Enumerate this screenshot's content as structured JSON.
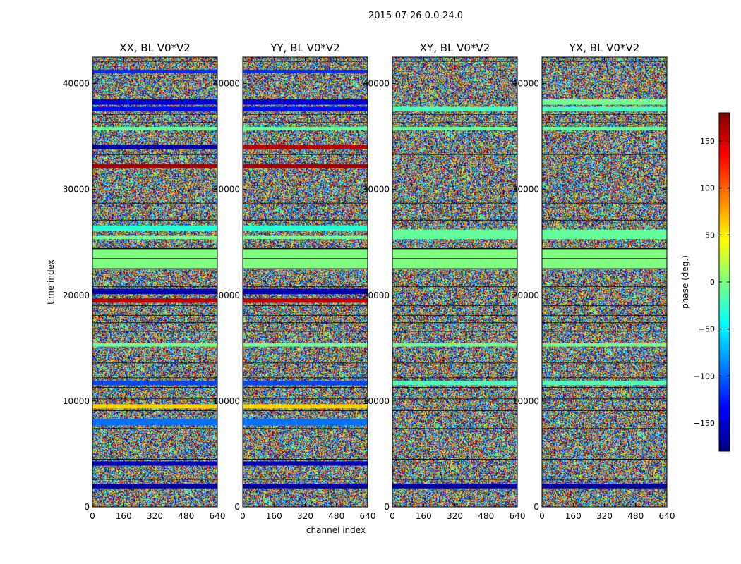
{
  "figure": {
    "suptitle": "2015-07-26 0.0-24.0",
    "xlabel": "channel index",
    "ylabel": "time index"
  },
  "colors": {
    "jet": [
      "#00007f",
      "#0000ff",
      "#007fff",
      "#00ffff",
      "#7fff7f",
      "#ffff00",
      "#ff7f00",
      "#ff0000",
      "#7f0000"
    ],
    "flagged": "#7fff7f",
    "line": "#000000"
  },
  "chart_data": [
    {
      "type": "heatmap",
      "title": "XX, BL V0*V2",
      "x_range": [
        0,
        640
      ],
      "y_range": [
        0,
        42500
      ],
      "xticks": [
        0,
        160,
        320,
        480,
        640
      ],
      "yticks": [
        0,
        10000,
        20000,
        30000,
        40000
      ],
      "colorscale": "jet",
      "value_range": [
        -180,
        180
      ],
      "bands": [
        {
          "y": [
            1750,
            2200
          ],
          "value": -170
        },
        {
          "y": [
            3900,
            4300
          ],
          "value": -160
        },
        {
          "y": [
            7700,
            8300
          ],
          "value": -95
        },
        {
          "y": [
            9300,
            9700
          ],
          "value": 60
        },
        {
          "y": [
            11500,
            11900
          ],
          "value": -110
        },
        {
          "y": [
            15150,
            15450
          ],
          "value": -5
        },
        {
          "y": [
            19300,
            19700
          ],
          "value": 160
        },
        {
          "y": [
            20100,
            20600
          ],
          "value": -165
        },
        {
          "y": [
            22500,
            24400
          ],
          "value": 0,
          "flagged": true
        },
        {
          "y": [
            25300,
            25600
          ],
          "value": -5
        },
        {
          "y": [
            26100,
            26600
          ],
          "value": -30
        },
        {
          "y": [
            32000,
            32400
          ],
          "value": 165
        },
        {
          "y": [
            33800,
            34200
          ],
          "value": -165
        },
        {
          "y": [
            35600,
            35900
          ],
          "value": -10
        },
        {
          "y": [
            37400,
            37800
          ],
          "value": -130
        },
        {
          "y": [
            38000,
            38500
          ],
          "value": -150
        },
        {
          "y": [
            41000,
            41300
          ],
          "value": -120
        }
      ]
    },
    {
      "type": "heatmap",
      "title": "YY, BL V0*V2",
      "x_range": [
        0,
        640
      ],
      "y_range": [
        0,
        42500
      ],
      "xticks": [
        0,
        160,
        320,
        480,
        640
      ],
      "yticks": [
        0,
        10000,
        20000,
        30000,
        40000
      ],
      "colorscale": "jet",
      "value_range": [
        -180,
        180
      ],
      "bands": [
        {
          "y": [
            1750,
            2200
          ],
          "value": -170
        },
        {
          "y": [
            3900,
            4300
          ],
          "value": -160
        },
        {
          "y": [
            7700,
            8300
          ],
          "value": -95
        },
        {
          "y": [
            9300,
            9700
          ],
          "value": 60
        },
        {
          "y": [
            11500,
            11900
          ],
          "value": -110
        },
        {
          "y": [
            15150,
            15450
          ],
          "value": -5
        },
        {
          "y": [
            19300,
            19700
          ],
          "value": 160
        },
        {
          "y": [
            20100,
            20600
          ],
          "value": -165
        },
        {
          "y": [
            22500,
            24400
          ],
          "value": 0,
          "flagged": true
        },
        {
          "y": [
            25300,
            25600
          ],
          "value": -5
        },
        {
          "y": [
            26100,
            26600
          ],
          "value": -30
        },
        {
          "y": [
            32000,
            32400
          ],
          "value": 165
        },
        {
          "y": [
            33800,
            34200
          ],
          "value": 160
        },
        {
          "y": [
            35600,
            35900
          ],
          "value": -10
        },
        {
          "y": [
            37400,
            37800
          ],
          "value": -130
        },
        {
          "y": [
            38000,
            38500
          ],
          "value": -150
        },
        {
          "y": [
            41000,
            41300
          ],
          "value": -120
        }
      ]
    },
    {
      "type": "heatmap",
      "title": "XY, BL V0*V2",
      "x_range": [
        0,
        640
      ],
      "y_range": [
        0,
        42500
      ],
      "xticks": [
        0,
        160,
        320,
        480,
        640
      ],
      "yticks": [
        0,
        10000,
        20000,
        30000,
        40000
      ],
      "colorscale": "jet",
      "value_range": [
        -180,
        180
      ],
      "bands": [
        {
          "y": [
            1750,
            2200
          ],
          "value": -170
        },
        {
          "y": [
            11500,
            11900
          ],
          "value": -20
        },
        {
          "y": [
            15150,
            15450
          ],
          "value": -5
        },
        {
          "y": [
            22500,
            24400
          ],
          "value": 0,
          "flagged": true
        },
        {
          "y": [
            25300,
            26200
          ],
          "value": -10
        },
        {
          "y": [
            35600,
            35900
          ],
          "value": -10
        },
        {
          "y": [
            37400,
            37800
          ],
          "value": -20
        }
      ]
    },
    {
      "type": "heatmap",
      "title": "YX, BL V0*V2",
      "x_range": [
        0,
        640
      ],
      "y_range": [
        0,
        42500
      ],
      "xticks": [
        0,
        160,
        320,
        480,
        640
      ],
      "yticks": [
        0,
        10000,
        20000,
        30000,
        40000
      ],
      "colorscale": "jet",
      "value_range": [
        -180,
        180
      ],
      "bands": [
        {
          "y": [
            1750,
            2200
          ],
          "value": -170
        },
        {
          "y": [
            11500,
            11900
          ],
          "value": -20
        },
        {
          "y": [
            15150,
            15450
          ],
          "value": -5
        },
        {
          "y": [
            22500,
            24400
          ],
          "value": 0,
          "flagged": true
        },
        {
          "y": [
            25300,
            26200
          ],
          "value": -10
        },
        {
          "y": [
            35600,
            35900
          ],
          "value": -10
        },
        {
          "y": [
            37400,
            37800
          ],
          "value": -20
        },
        {
          "y": [
            38000,
            38500
          ],
          "value": -5
        }
      ]
    }
  ],
  "colorbar": {
    "label": "phase (deg.)",
    "range": [
      -180,
      180
    ],
    "ticks": [
      -150,
      -100,
      -50,
      0,
      50,
      100,
      150
    ],
    "tick_labels": [
      "−150",
      "−100",
      "−50",
      "0",
      "50",
      "100",
      "150"
    ]
  }
}
